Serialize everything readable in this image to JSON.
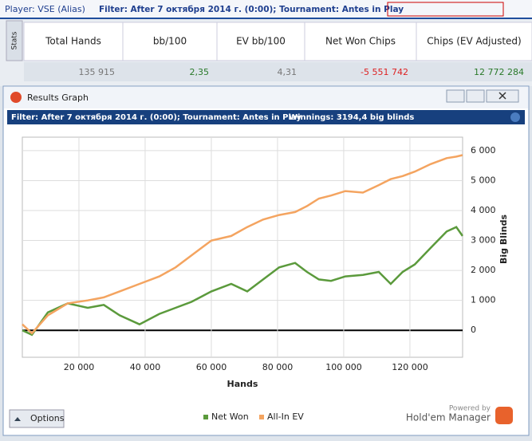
{
  "topbar": {
    "player": "Player: VSE (Alias)",
    "filter": "Filter: After 7 октября 2014 г. (0:00); Tournament: Antes in Play"
  },
  "stats": {
    "tab": "Stats",
    "headers": [
      "Total Hands",
      "bb/100",
      "EV bb/100",
      "Net Won Chips",
      "Chips (EV Adjusted)"
    ],
    "values": [
      "135 915",
      "2,35",
      "4,31",
      "-5 551 742",
      "12 772 284"
    ]
  },
  "window": {
    "title": "Results Graph",
    "filter": "Filter: After 7 октября 2014 г. (0:00); Tournament: Antes in Play",
    "winnings": "Winnings: 3194,4 big blinds",
    "options": "Options",
    "powered": "Powered by",
    "brand": "Hold'em Manager"
  },
  "chart_data": {
    "type": "line",
    "xlabel": "Hands",
    "ylabel": "Big Blinds",
    "x": [
      2900,
      5800,
      10600,
      16600,
      22650,
      27500,
      32300,
      38300,
      44300,
      49200,
      54000,
      60000,
      66000,
      70850,
      75650,
      80500,
      85300,
      88900,
      92500,
      96150,
      100500,
      105800,
      110600,
      114200,
      117800,
      121450,
      126250,
      131100,
      134000,
      135900
    ],
    "series": [
      {
        "name": "Net Won",
        "color": "#5b9a3c",
        "values": [
          0,
          -150,
          600,
          900,
          750,
          850,
          500,
          200,
          550,
          750,
          950,
          1300,
          1550,
          1300,
          1700,
          2100,
          2250,
          1950,
          1700,
          1650,
          1800,
          1850,
          1950,
          1550,
          1950,
          2200,
          2750,
          3300,
          3450,
          3150
        ]
      },
      {
        "name": "All-In EV",
        "color": "#f4a460",
        "values": [
          200,
          -100,
          500,
          900,
          1000,
          1100,
          1300,
          1550,
          1800,
          2100,
          2500,
          3000,
          3150,
          3450,
          3700,
          3850,
          3950,
          4150,
          4400,
          4500,
          4650,
          4600,
          4850,
          5050,
          5150,
          5300,
          5550,
          5750,
          5800,
          5850
        ]
      }
    ],
    "xlim": [
      2900,
      135915
    ],
    "ylim": [
      -900,
      6450
    ],
    "xticks": [
      {
        "value": 20000,
        "label": "20 000"
      },
      {
        "value": 40000,
        "label": "40 000"
      },
      {
        "value": 60000,
        "label": "60 000"
      },
      {
        "value": 80000,
        "label": "80 000"
      },
      {
        "value": 100000,
        "label": "100 000"
      },
      {
        "value": 120000,
        "label": "120 000"
      }
    ],
    "yticks": [
      0,
      {
        "value": 1000,
        "label": "1 000"
      },
      {
        "value": 2000,
        "label": "2 000"
      },
      {
        "value": 3000,
        "label": "3 000"
      },
      {
        "value": 4000,
        "label": "4 000"
      },
      {
        "value": 5000,
        "label": "5 000"
      },
      {
        "value": 6000,
        "label": "6 000"
      }
    ],
    "grid": true
  }
}
